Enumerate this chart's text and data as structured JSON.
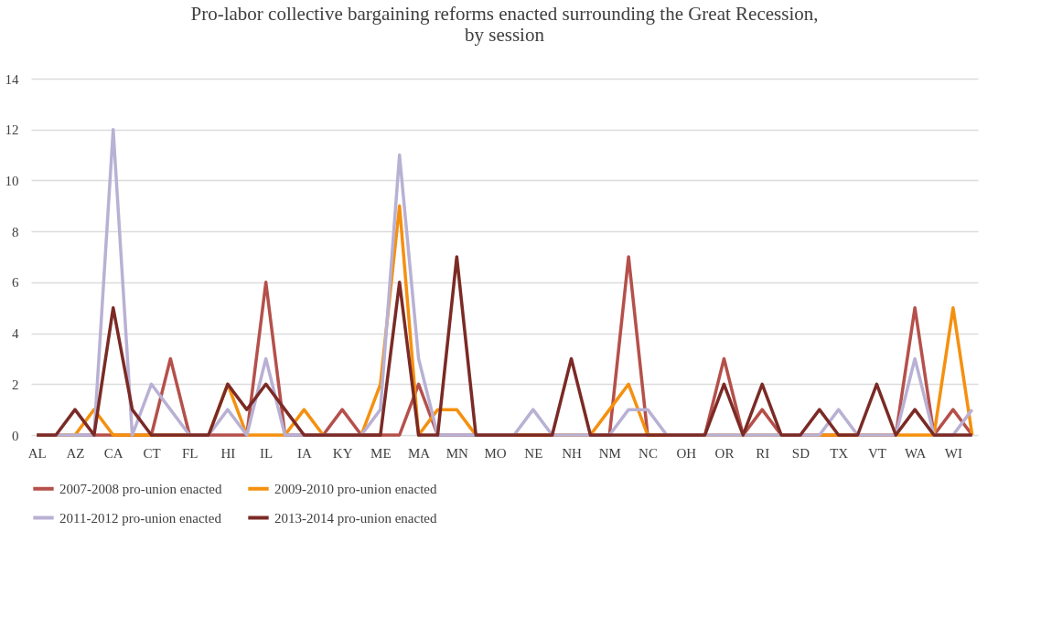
{
  "chart_data": {
    "type": "line",
    "title": [
      "Pro-labor collective bargaining reforms enacted surrounding the Great Recession,",
      "by session"
    ],
    "categories": [
      "AL",
      null,
      "AZ",
      null,
      "CA",
      null,
      "CT",
      null,
      "FL",
      null,
      "HI",
      null,
      "IL",
      null,
      "IA",
      null,
      "KY",
      null,
      "ME",
      null,
      "MA",
      null,
      "MN",
      null,
      "MO",
      null,
      "NE",
      null,
      "NH",
      null,
      "NM",
      null,
      "NC",
      null,
      "OH",
      null,
      "OR",
      null,
      "RI",
      null,
      "SD",
      null,
      "TX",
      null,
      "VT",
      null,
      "WA",
      null,
      "WI",
      null
    ],
    "series": [
      {
        "name": "2007-2008 pro-union enacted",
        "color": "#b5504b",
        "values": [
          0,
          0,
          0,
          0,
          0,
          0,
          0,
          3,
          0,
          0,
          0,
          0,
          6,
          0,
          0,
          0,
          1,
          0,
          0,
          0,
          2,
          0,
          0,
          0,
          0,
          0,
          0,
          0,
          0,
          0,
          0,
          7,
          0,
          0,
          0,
          0,
          3,
          0,
          1,
          0,
          0,
          0,
          0,
          0,
          0,
          0,
          5,
          0,
          1,
          0
        ]
      },
      {
        "name": "2009-2010 pro-union enacted",
        "color": "#f5900f",
        "values": [
          0,
          0,
          0,
          1,
          0,
          0,
          0,
          0,
          0,
          0,
          2,
          0,
          0,
          0,
          1,
          0,
          0,
          0,
          2,
          9,
          0,
          1,
          1,
          0,
          0,
          0,
          0,
          0,
          0,
          0,
          1,
          2,
          0,
          0,
          0,
          0,
          0,
          0,
          0,
          0,
          0,
          0,
          0,
          0,
          0,
          0,
          0,
          0,
          5,
          0
        ]
      },
      {
        "name": "2011-2012 pro-union enacted",
        "color": "#b9b1d4",
        "values": [
          0,
          0,
          0,
          0,
          12,
          0,
          2,
          1,
          0,
          0,
          1,
          0,
          3,
          0,
          0,
          0,
          0,
          0,
          1,
          11,
          3,
          0,
          0,
          0,
          0,
          0,
          1,
          0,
          0,
          0,
          0,
          1,
          1,
          0,
          0,
          0,
          0,
          0,
          0,
          0,
          0,
          0,
          1,
          0,
          0,
          0,
          3,
          0,
          0,
          1
        ]
      },
      {
        "name": "2013-2014 pro-union enacted",
        "color": "#7b2a25",
        "values": [
          0,
          0,
          1,
          0,
          5,
          1,
          0,
          0,
          0,
          0,
          2,
          1,
          2,
          1,
          0,
          0,
          0,
          0,
          0,
          6,
          0,
          0,
          7,
          0,
          0,
          0,
          0,
          0,
          3,
          0,
          0,
          0,
          0,
          0,
          0,
          0,
          2,
          0,
          2,
          0,
          0,
          1,
          0,
          0,
          2,
          0,
          1,
          0,
          0,
          0
        ]
      }
    ],
    "ylim": [
      0,
      14
    ],
    "yticks": [
      0,
      2,
      4,
      6,
      8,
      10,
      12,
      14
    ],
    "grid": "y",
    "legend": "bottom",
    "marker": "none",
    "line_style": "solid"
  }
}
